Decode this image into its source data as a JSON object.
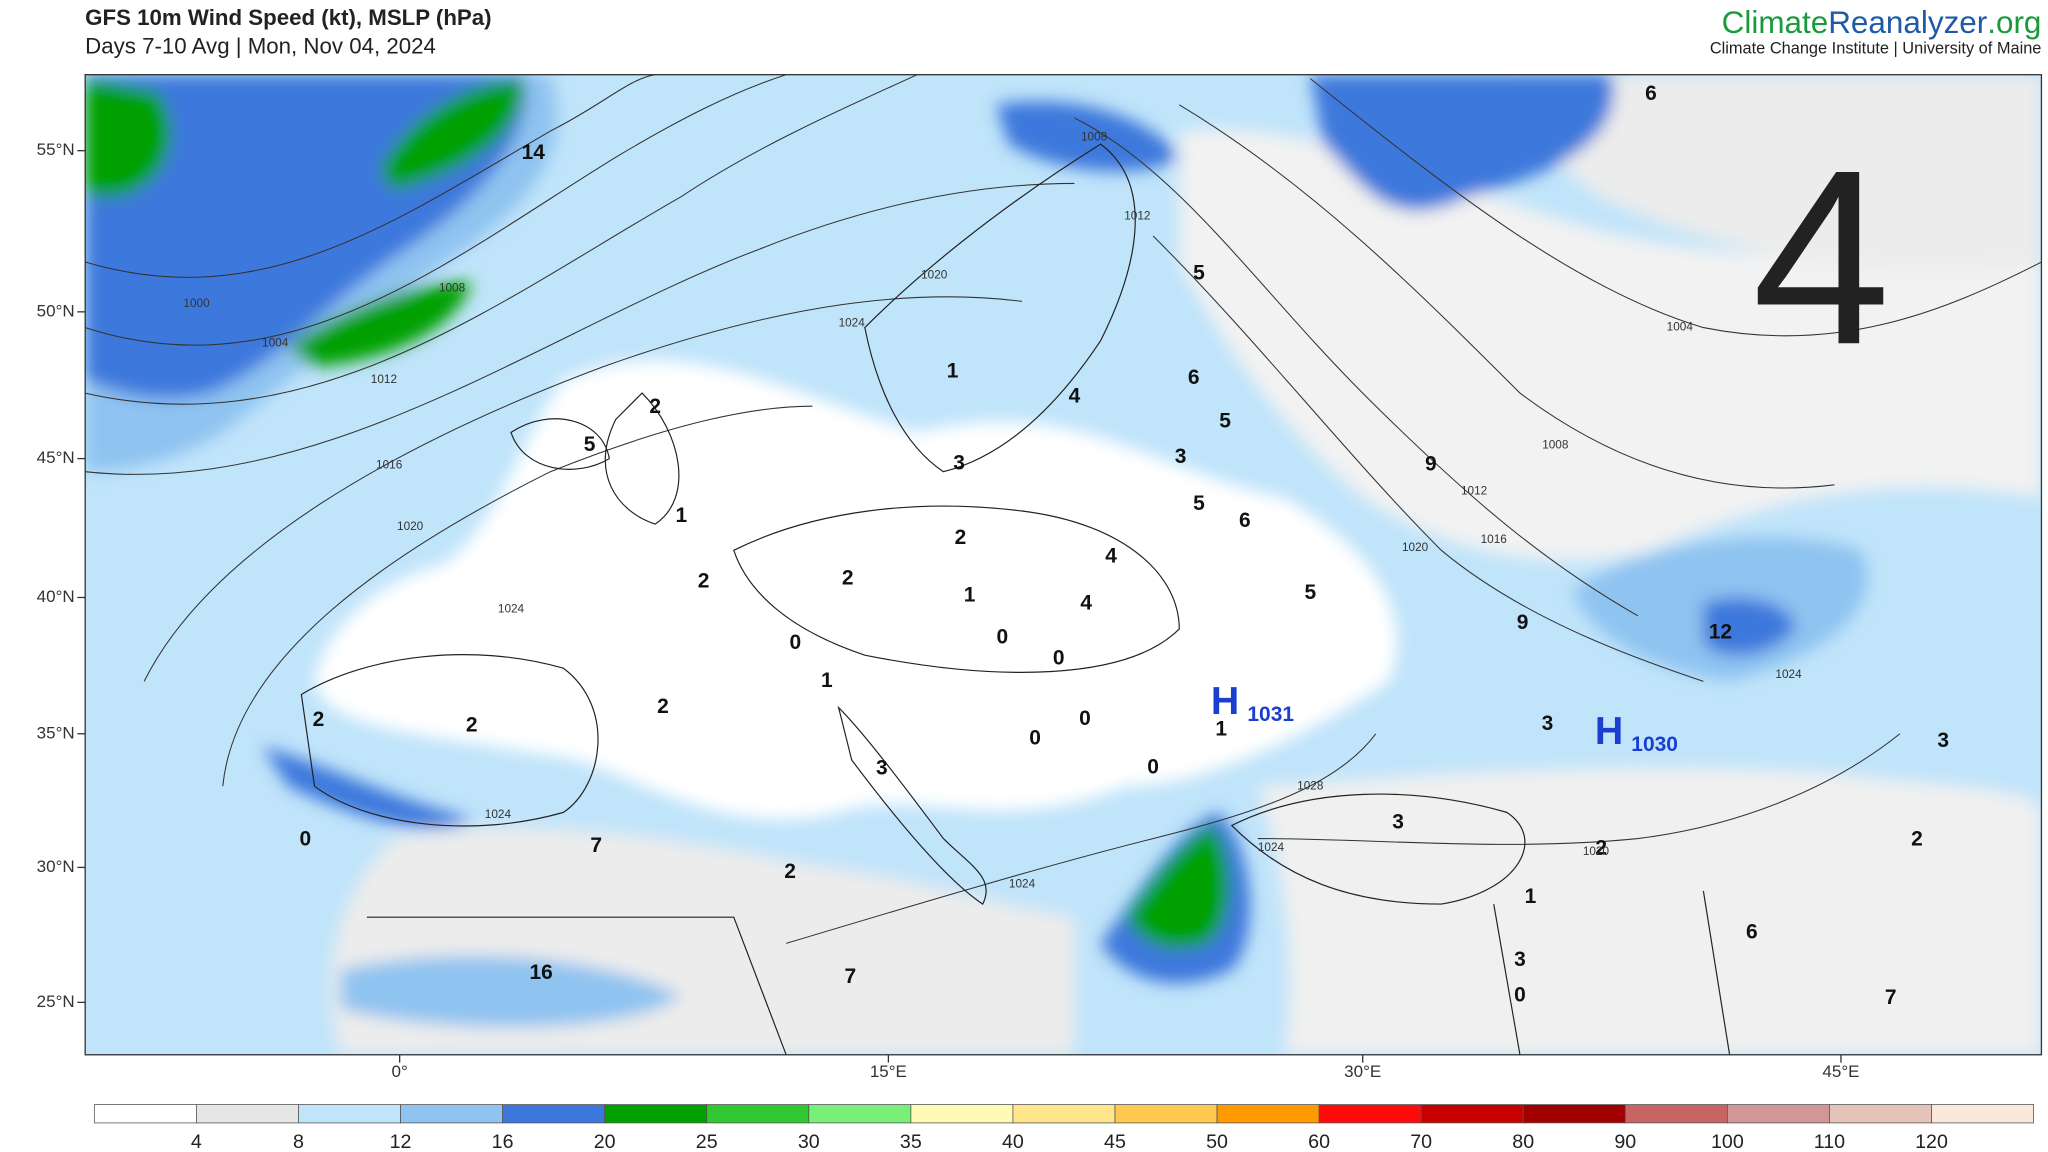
{
  "header": {
    "title": "GFS 10m Wind Speed (kt), MSLP (hPa)",
    "subtitle": "Days 7-10 Avg | Mon, Nov 04, 2024"
  },
  "brand": {
    "name": [
      "Climate",
      "Reanalyzer",
      ".org"
    ],
    "tagline": "Climate Change Institute | University of Maine"
  },
  "map": {
    "panel_number": "4",
    "lat_labels": [
      "55°N",
      "50°N",
      "45°N",
      "40°N",
      "35°N",
      "30°N",
      "25°N"
    ],
    "lon_labels": [
      "0°",
      "15°E",
      "30°E",
      "45°E"
    ],
    "highs": [
      {
        "symbol": "H",
        "value": "1031"
      },
      {
        "symbol": "H",
        "value": "1030"
      }
    ],
    "wind_labels": [
      14,
      2,
      5,
      1,
      2,
      2,
      2,
      1,
      4,
      4,
      0,
      0,
      0,
      1,
      2,
      2,
      2,
      0,
      0,
      1,
      0,
      3,
      0,
      7,
      2,
      3,
      2,
      2,
      1,
      6,
      3,
      0,
      7,
      16,
      7,
      5,
      6,
      5,
      3,
      5,
      6,
      5,
      9,
      9,
      12,
      3,
      3,
      6,
      1,
      4,
      3
    ],
    "isobar_labels": [
      1000,
      1004,
      1008,
      1012,
      1016,
      1020,
      1024,
      1008,
      1012,
      1020,
      1024,
      1004,
      1008,
      1012,
      1016,
      1020,
      1024,
      1024,
      1028,
      1024,
      1020,
      1024
    ]
  },
  "colorbar": {
    "labels": [
      4,
      8,
      12,
      16,
      20,
      25,
      30,
      35,
      40,
      45,
      50,
      60,
      70,
      80,
      90,
      100,
      110,
      120
    ],
    "colors": [
      "#ffffff",
      "#e6e6e6",
      "#c0e4fa",
      "#8fc3f0",
      "#3c78dc",
      "#00a000",
      "#32c832",
      "#78f078",
      "#fffab4",
      "#ffe68c",
      "#ffc84f",
      "#ff9a00",
      "#ff0a0a",
      "#c80000",
      "#a00000",
      "#c86464",
      "#d29696",
      "#e6c3b9",
      "#fbe8dc"
    ]
  }
}
